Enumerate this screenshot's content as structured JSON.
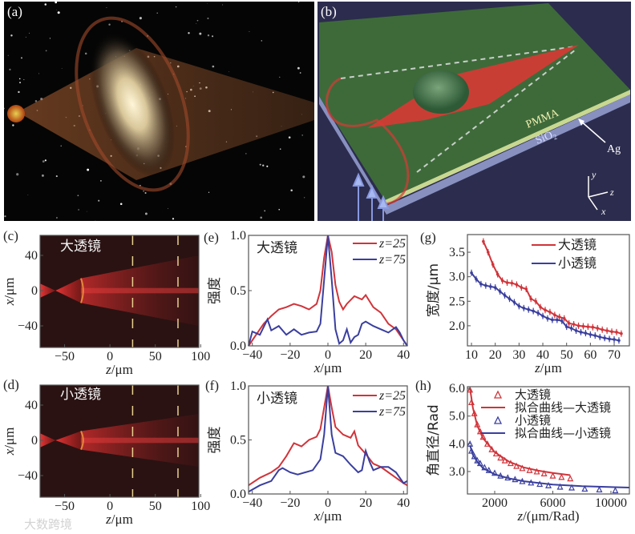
{
  "panel_labels": {
    "a": "(a)",
    "b": "(b)",
    "c": "(c)",
    "d": "(d)",
    "e": "(e)",
    "f": "(f)",
    "g": "(g)",
    "h": "(h)"
  },
  "panel_b": {
    "pmma": "PMMA",
    "sio2": "SiO",
    "sio2_sub": "2",
    "ag": "Ag",
    "axis_y": "y",
    "axis_z": "z",
    "axis_x": "x"
  },
  "watermark": "大数跨境",
  "colors": {
    "red": "#d0343a",
    "blue": "#3a3f9e"
  },
  "chart_data": [
    {
      "id": "c",
      "type": "heatmap",
      "inset": "大透镜",
      "xlabel": "z/μm",
      "ylabel": "x/μm",
      "xlim": [
        -77,
        98
      ],
      "ylim": [
        -64.5,
        62.7
      ],
      "xticks": [
        -50,
        0,
        50,
        100
      ],
      "xtick_labels": [
        "−50",
        "0",
        "50",
        "100"
      ],
      "yticks": [
        40,
        0,
        -40
      ],
      "ytick_labels": [
        "40",
        "0",
        "−40"
      ],
      "markers_z": [
        25,
        75
      ]
    },
    {
      "id": "d",
      "type": "heatmap",
      "inset": "小透镜",
      "xlabel": "z/μm",
      "ylabel": "x/μm",
      "xlim": [
        -77,
        98
      ],
      "ylim": [
        -64.5,
        62.7
      ],
      "xticks": [
        -50,
        0,
        50,
        100
      ],
      "xtick_labels": [
        "−50",
        "0",
        "50",
        "100"
      ],
      "yticks": [
        40,
        0,
        -40
      ],
      "ytick_labels": [
        "40",
        "0",
        "−40"
      ],
      "markers_z": [
        25,
        75
      ]
    },
    {
      "id": "e",
      "type": "line",
      "inset": "大透镜",
      "xlabel": "x/μm",
      "ylabel": "强度",
      "xlim": [
        -42,
        42
      ],
      "ylim": [
        0,
        1
      ],
      "xticks": [
        -40,
        -20,
        0,
        20,
        40
      ],
      "xtick_labels": [
        "−40",
        "−20",
        "0",
        "20",
        "40"
      ],
      "yticks": [
        0,
        0.5,
        1
      ],
      "ytick_labels": [
        "0.0",
        "0.5",
        "1.0"
      ],
      "legend": "top-right",
      "series": [
        {
          "name": "z=25",
          "color": "#d0343a",
          "x": [
            -42,
            -38,
            -34,
            -30,
            -26,
            -22,
            -18,
            -14,
            -10,
            -6,
            -4,
            -2,
            0,
            2,
            4,
            6,
            8,
            10,
            14,
            18,
            20,
            24,
            28,
            32,
            36,
            40,
            42
          ],
          "y": [
            0,
            0.1,
            0.2,
            0.27,
            0.33,
            0.35,
            0.38,
            0.36,
            0.33,
            0.38,
            0.5,
            0.8,
            1,
            0.85,
            0.55,
            0.4,
            0.33,
            0.38,
            0.45,
            0.42,
            0.46,
            0.35,
            0.3,
            0.2,
            0.15,
            0.05,
            0
          ]
        },
        {
          "name": "z=75",
          "color": "#3a3f9e",
          "x": [
            -42,
            -40,
            -36,
            -32,
            -30,
            -26,
            -22,
            -18,
            -14,
            -10,
            -6,
            -4,
            -2,
            0,
            2,
            4,
            6,
            8,
            10,
            12,
            14,
            16,
            18,
            20,
            24,
            28,
            32,
            36,
            38,
            40,
            42
          ],
          "y": [
            0,
            0.13,
            0.1,
            0.24,
            0.14,
            0.18,
            0.1,
            0.15,
            0.1,
            0.12,
            0.13,
            0.2,
            0.6,
            1,
            0.6,
            0.15,
            0.02,
            0.05,
            0.15,
            0.03,
            0.08,
            0.1,
            0.2,
            0.22,
            0.18,
            0.15,
            0.12,
            0.17,
            0.12,
            0.05,
            0
          ]
        }
      ]
    },
    {
      "id": "f",
      "type": "line",
      "inset": "小透镜",
      "xlabel": "x/μm",
      "ylabel": "强度",
      "xlim": [
        -42,
        42
      ],
      "ylim": [
        0,
        1
      ],
      "xticks": [
        -40,
        -20,
        0,
        20,
        40
      ],
      "xtick_labels": [
        "−40",
        "−20",
        "0",
        "20",
        "40"
      ],
      "yticks": [
        0,
        0.5,
        1
      ],
      "ytick_labels": [
        "0.0",
        "0.5",
        "1.0"
      ],
      "legend": "top-right",
      "series": [
        {
          "name": "z=25",
          "color": "#d0343a",
          "x": [
            -42,
            -36,
            -30,
            -26,
            -22,
            -18,
            -14,
            -10,
            -6,
            -4,
            -2,
            0,
            2,
            4,
            8,
            12,
            14,
            16,
            20,
            24,
            28,
            32,
            36,
            40,
            42
          ],
          "y": [
            0.08,
            0.15,
            0.2,
            0.25,
            0.35,
            0.47,
            0.44,
            0.5,
            0.53,
            0.6,
            0.8,
            1,
            0.8,
            0.62,
            0.55,
            0.52,
            0.58,
            0.45,
            0.37,
            0.28,
            0.25,
            0.2,
            0.15,
            0.1,
            0.08
          ]
        },
        {
          "name": "z=75",
          "color": "#3a3f9e",
          "x": [
            -42,
            -36,
            -30,
            -26,
            -24,
            -20,
            -16,
            -12,
            -8,
            -4,
            -2,
            0,
            2,
            4,
            8,
            12,
            16,
            18,
            20,
            22,
            24,
            28,
            32,
            36,
            40,
            42
          ],
          "y": [
            0.02,
            0.08,
            0.12,
            0.22,
            0.24,
            0.2,
            0.18,
            0.2,
            0.22,
            0.32,
            0.55,
            1,
            0.55,
            0.38,
            0.35,
            0.27,
            0.2,
            0.22,
            0.4,
            0.3,
            0.22,
            0.25,
            0.25,
            0.2,
            0.1,
            0.12
          ]
        }
      ]
    },
    {
      "id": "g",
      "type": "line",
      "xlabel": "z/μm",
      "ylabel": "宽度/μm",
      "xlim": [
        8.3,
        76.4
      ],
      "ylim": [
        1.59,
        3.86
      ],
      "xticks": [
        10,
        20,
        30,
        40,
        50,
        60,
        70
      ],
      "xtick_labels": [
        "10",
        "20",
        "30",
        "40",
        "50",
        "60",
        "70"
      ],
      "yticks": [
        2,
        2.5,
        3,
        3.5
      ],
      "ytick_labels": [
        "2.0",
        "2.5",
        "3.0",
        "3.5"
      ],
      "legend": "top-right",
      "error_bars": true,
      "series": [
        {
          "name": "大透镜",
          "color": "#d0343a",
          "x": [
            15,
            17,
            19,
            21,
            23,
            25,
            27,
            29,
            31,
            33,
            35,
            37,
            39,
            41,
            43,
            45,
            47,
            49,
            51,
            53,
            55,
            57,
            59,
            61,
            63,
            65,
            67,
            69,
            71,
            73
          ],
          "y": [
            3.72,
            3.5,
            3.25,
            3.05,
            2.92,
            2.88,
            2.87,
            2.84,
            2.78,
            2.75,
            2.55,
            2.5,
            2.38,
            2.32,
            2.28,
            2.22,
            2.18,
            2.15,
            2.05,
            2.03,
            2.0,
            1.99,
            1.98,
            1.97,
            1.95,
            1.92,
            1.9,
            1.88,
            1.87,
            1.84
          ]
        },
        {
          "name": "小透镜",
          "color": "#3a3f9e",
          "x": [
            10,
            12,
            14,
            16,
            18,
            20,
            22,
            24,
            26,
            28,
            30,
            32,
            34,
            36,
            38,
            40,
            42,
            44,
            46,
            48,
            50,
            52,
            54,
            56,
            58,
            60,
            62,
            64,
            66,
            68,
            70,
            72
          ],
          "y": [
            3.08,
            2.95,
            2.85,
            2.82,
            2.8,
            2.78,
            2.7,
            2.62,
            2.55,
            2.48,
            2.4,
            2.36,
            2.33,
            2.3,
            2.26,
            2.2,
            2.15,
            2.12,
            2.12,
            2.1,
            1.98,
            1.95,
            1.9,
            1.87,
            1.85,
            1.82,
            1.8,
            1.77,
            1.75,
            1.73,
            1.72,
            1.7
          ]
        }
      ]
    },
    {
      "id": "h",
      "type": "scatter",
      "xlabel": "z/(μm/Rad)",
      "ylabel": "角直径/Rad",
      "xlim": [
        124,
        11270
      ],
      "ylim": [
        2.19,
        6.06
      ],
      "xticks": [
        2000,
        6000,
        10000
      ],
      "xtick_labels": [
        "2000",
        "6000",
        "10000"
      ],
      "yticks": [
        3,
        4,
        5,
        6
      ],
      "ytick_labels": [
        "3.0",
        "4.0",
        "5.0",
        "6.0"
      ],
      "legend": "top-right",
      "series": [
        {
          "name": "大透镜",
          "kind": "triangles",
          "color": "#d0343a",
          "x": [
            300,
            400,
            600,
            800,
            1000,
            1200,
            1500,
            1800,
            2100,
            2400,
            2700,
            3100,
            3500,
            3900,
            4400,
            4900,
            5400,
            6000,
            6600,
            7200
          ],
          "y": [
            5.95,
            5.5,
            5.1,
            4.7,
            4.45,
            4.25,
            4.0,
            3.8,
            3.65,
            3.5,
            3.4,
            3.3,
            3.2,
            3.12,
            3.05,
            3.0,
            2.93,
            2.85,
            2.8,
            2.75
          ]
        },
        {
          "name": "拟合曲线—大透镜",
          "kind": "line",
          "color": "#d0343a",
          "x": [
            300,
            500,
            800,
            1200,
            2000,
            3000,
            4000,
            5000,
            6000,
            7200
          ],
          "y": [
            6.0,
            5.3,
            4.65,
            4.2,
            3.7,
            3.35,
            3.15,
            3.03,
            2.95,
            2.87
          ]
        },
        {
          "name": "小透镜",
          "kind": "triangles",
          "color": "#3a3f9e",
          "x": [
            300,
            400,
            600,
            800,
            1000,
            1300,
            1600,
            2000,
            2400,
            2900,
            3400,
            3900,
            4500,
            5100,
            5700,
            6500,
            7300,
            8200,
            9200,
            10300
          ],
          "y": [
            4.0,
            3.75,
            3.55,
            3.4,
            3.3,
            3.15,
            3.05,
            2.95,
            2.85,
            2.78,
            2.72,
            2.65,
            2.6,
            2.55,
            2.5,
            2.45,
            2.42,
            2.38,
            2.35,
            2.32
          ]
        },
        {
          "name": "拟合曲线—小透镜",
          "kind": "line",
          "color": "#3a3f9e",
          "x": [
            300,
            500,
            800,
            1200,
            2000,
            3000,
            4000,
            6000,
            8000,
            11270
          ],
          "y": [
            3.95,
            3.6,
            3.35,
            3.12,
            2.9,
            2.75,
            2.65,
            2.53,
            2.47,
            2.42
          ]
        }
      ]
    }
  ]
}
